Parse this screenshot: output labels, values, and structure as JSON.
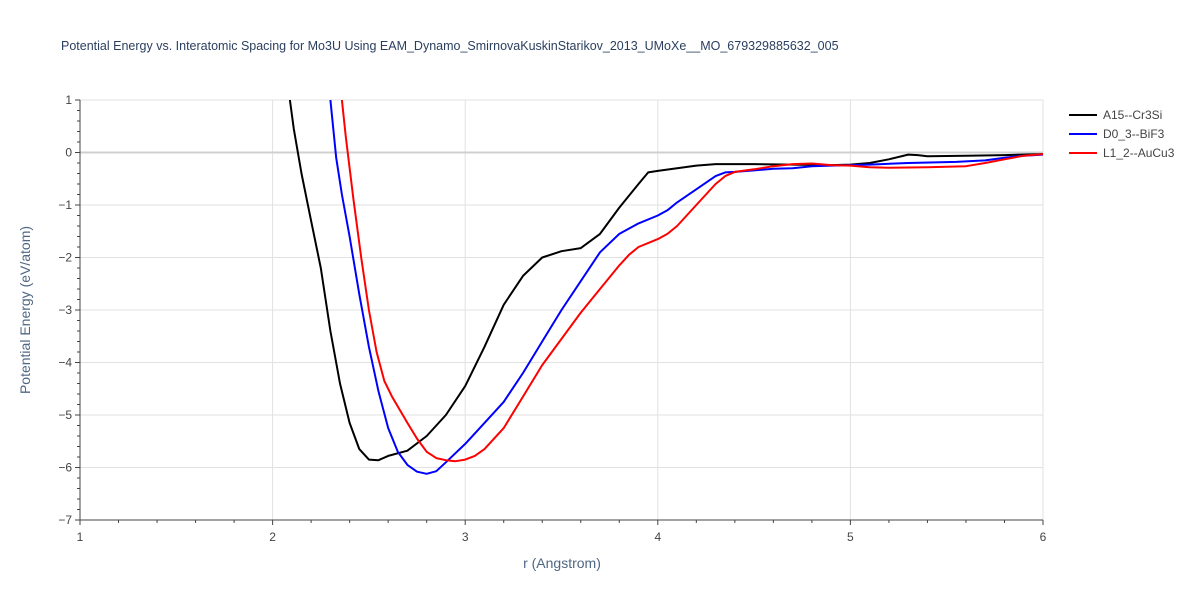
{
  "chart_data": {
    "type": "line",
    "title": "Potential Energy vs. Interatomic Spacing for Mo3U Using EAM_Dynamo_SmirnovaKuskinStarikov_2013_UMoXe__MO_679329885632_005",
    "xlabel": "r (Angstrom)",
    "ylabel": "Potential Energy (eV/atom)",
    "xlim": [
      1,
      6
    ],
    "ylim": [
      -7,
      1
    ],
    "xticks": [
      1,
      2,
      3,
      4,
      5,
      6
    ],
    "xtick_labels": [
      "1",
      "2",
      "3",
      "4",
      "5",
      "6"
    ],
    "yticks": [
      1,
      0,
      -1,
      -2,
      -3,
      -4,
      -5,
      -6,
      -7
    ],
    "ytick_labels": [
      "1",
      "0",
      "−1",
      "−2",
      "−3",
      "−4",
      "−5",
      "−6",
      "−7"
    ],
    "grid": true,
    "legend_position": "top-right",
    "series": [
      {
        "name": "A15--Cr3Si",
        "color": "#000000",
        "points": [
          [
            2.09,
            1.0
          ],
          [
            2.11,
            0.45
          ],
          [
            2.15,
            -0.4
          ],
          [
            2.2,
            -1.3
          ],
          [
            2.25,
            -2.2
          ],
          [
            2.3,
            -3.4
          ],
          [
            2.35,
            -4.4
          ],
          [
            2.4,
            -5.15
          ],
          [
            2.45,
            -5.65
          ],
          [
            2.5,
            -5.85
          ],
          [
            2.55,
            -5.86
          ],
          [
            2.6,
            -5.78
          ],
          [
            2.7,
            -5.68
          ],
          [
            2.8,
            -5.4
          ],
          [
            2.9,
            -5.0
          ],
          [
            3.0,
            -4.45
          ],
          [
            3.1,
            -3.7
          ],
          [
            3.2,
            -2.9
          ],
          [
            3.3,
            -2.35
          ],
          [
            3.4,
            -2.0
          ],
          [
            3.5,
            -1.88
          ],
          [
            3.6,
            -1.82
          ],
          [
            3.7,
            -1.55
          ],
          [
            3.8,
            -1.05
          ],
          [
            3.9,
            -0.6
          ],
          [
            3.95,
            -0.38
          ],
          [
            4.0,
            -0.35
          ],
          [
            4.1,
            -0.3
          ],
          [
            4.2,
            -0.25
          ],
          [
            4.3,
            -0.22
          ],
          [
            4.5,
            -0.22
          ],
          [
            4.7,
            -0.23
          ],
          [
            4.9,
            -0.24
          ],
          [
            5.0,
            -0.23
          ],
          [
            5.1,
            -0.2
          ],
          [
            5.2,
            -0.13
          ],
          [
            5.3,
            -0.04
          ],
          [
            5.35,
            -0.05
          ],
          [
            5.4,
            -0.07
          ],
          [
            5.6,
            -0.06
          ],
          [
            5.8,
            -0.05
          ],
          [
            6.0,
            -0.03
          ]
        ]
      },
      {
        "name": "D0_3--BiF3",
        "color": "#0000ff",
        "points": [
          [
            2.3,
            1.0
          ],
          [
            2.33,
            -0.1
          ],
          [
            2.36,
            -0.8
          ],
          [
            2.4,
            -1.6
          ],
          [
            2.45,
            -2.7
          ],
          [
            2.5,
            -3.7
          ],
          [
            2.55,
            -4.55
          ],
          [
            2.6,
            -5.25
          ],
          [
            2.65,
            -5.7
          ],
          [
            2.7,
            -5.95
          ],
          [
            2.75,
            -6.08
          ],
          [
            2.8,
            -6.12
          ],
          [
            2.85,
            -6.07
          ],
          [
            2.9,
            -5.9
          ],
          [
            3.0,
            -5.55
          ],
          [
            3.1,
            -5.15
          ],
          [
            3.2,
            -4.75
          ],
          [
            3.3,
            -4.2
          ],
          [
            3.4,
            -3.6
          ],
          [
            3.5,
            -3.0
          ],
          [
            3.6,
            -2.45
          ],
          [
            3.7,
            -1.9
          ],
          [
            3.8,
            -1.55
          ],
          [
            3.9,
            -1.35
          ],
          [
            4.0,
            -1.2
          ],
          [
            4.05,
            -1.1
          ],
          [
            4.1,
            -0.95
          ],
          [
            4.2,
            -0.7
          ],
          [
            4.3,
            -0.45
          ],
          [
            4.35,
            -0.38
          ],
          [
            4.4,
            -0.37
          ],
          [
            4.5,
            -0.34
          ],
          [
            4.6,
            -0.31
          ],
          [
            4.7,
            -0.3
          ],
          [
            4.8,
            -0.26
          ],
          [
            4.9,
            -0.25
          ],
          [
            5.0,
            -0.24
          ],
          [
            5.1,
            -0.23
          ],
          [
            5.3,
            -0.2
          ],
          [
            5.55,
            -0.18
          ],
          [
            5.7,
            -0.15
          ],
          [
            5.8,
            -0.1
          ],
          [
            5.9,
            -0.06
          ],
          [
            6.0,
            -0.04
          ]
        ]
      },
      {
        "name": "L1_2--AuCu3",
        "color": "#ff0000",
        "points": [
          [
            2.36,
            1.0
          ],
          [
            2.38,
            0.3
          ],
          [
            2.42,
            -0.9
          ],
          [
            2.46,
            -2.0
          ],
          [
            2.5,
            -3.0
          ],
          [
            2.54,
            -3.8
          ],
          [
            2.58,
            -4.35
          ],
          [
            2.62,
            -4.65
          ],
          [
            2.66,
            -4.9
          ],
          [
            2.7,
            -5.15
          ],
          [
            2.75,
            -5.45
          ],
          [
            2.8,
            -5.7
          ],
          [
            2.85,
            -5.82
          ],
          [
            2.9,
            -5.86
          ],
          [
            2.95,
            -5.88
          ],
          [
            3.0,
            -5.85
          ],
          [
            3.05,
            -5.78
          ],
          [
            3.1,
            -5.65
          ],
          [
            3.2,
            -5.25
          ],
          [
            3.3,
            -4.65
          ],
          [
            3.4,
            -4.05
          ],
          [
            3.5,
            -3.55
          ],
          [
            3.6,
            -3.05
          ],
          [
            3.7,
            -2.6
          ],
          [
            3.8,
            -2.15
          ],
          [
            3.85,
            -1.95
          ],
          [
            3.9,
            -1.8
          ],
          [
            4.0,
            -1.65
          ],
          [
            4.05,
            -1.55
          ],
          [
            4.1,
            -1.4
          ],
          [
            4.2,
            -1.0
          ],
          [
            4.3,
            -0.6
          ],
          [
            4.35,
            -0.45
          ],
          [
            4.4,
            -0.37
          ],
          [
            4.5,
            -0.32
          ],
          [
            4.6,
            -0.26
          ],
          [
            4.7,
            -0.22
          ],
          [
            4.8,
            -0.21
          ],
          [
            4.9,
            -0.24
          ],
          [
            5.0,
            -0.25
          ],
          [
            5.1,
            -0.28
          ],
          [
            5.2,
            -0.29
          ],
          [
            5.4,
            -0.28
          ],
          [
            5.6,
            -0.26
          ],
          [
            5.7,
            -0.2
          ],
          [
            5.8,
            -0.13
          ],
          [
            5.9,
            -0.06
          ],
          [
            6.0,
            -0.03
          ]
        ]
      }
    ]
  }
}
